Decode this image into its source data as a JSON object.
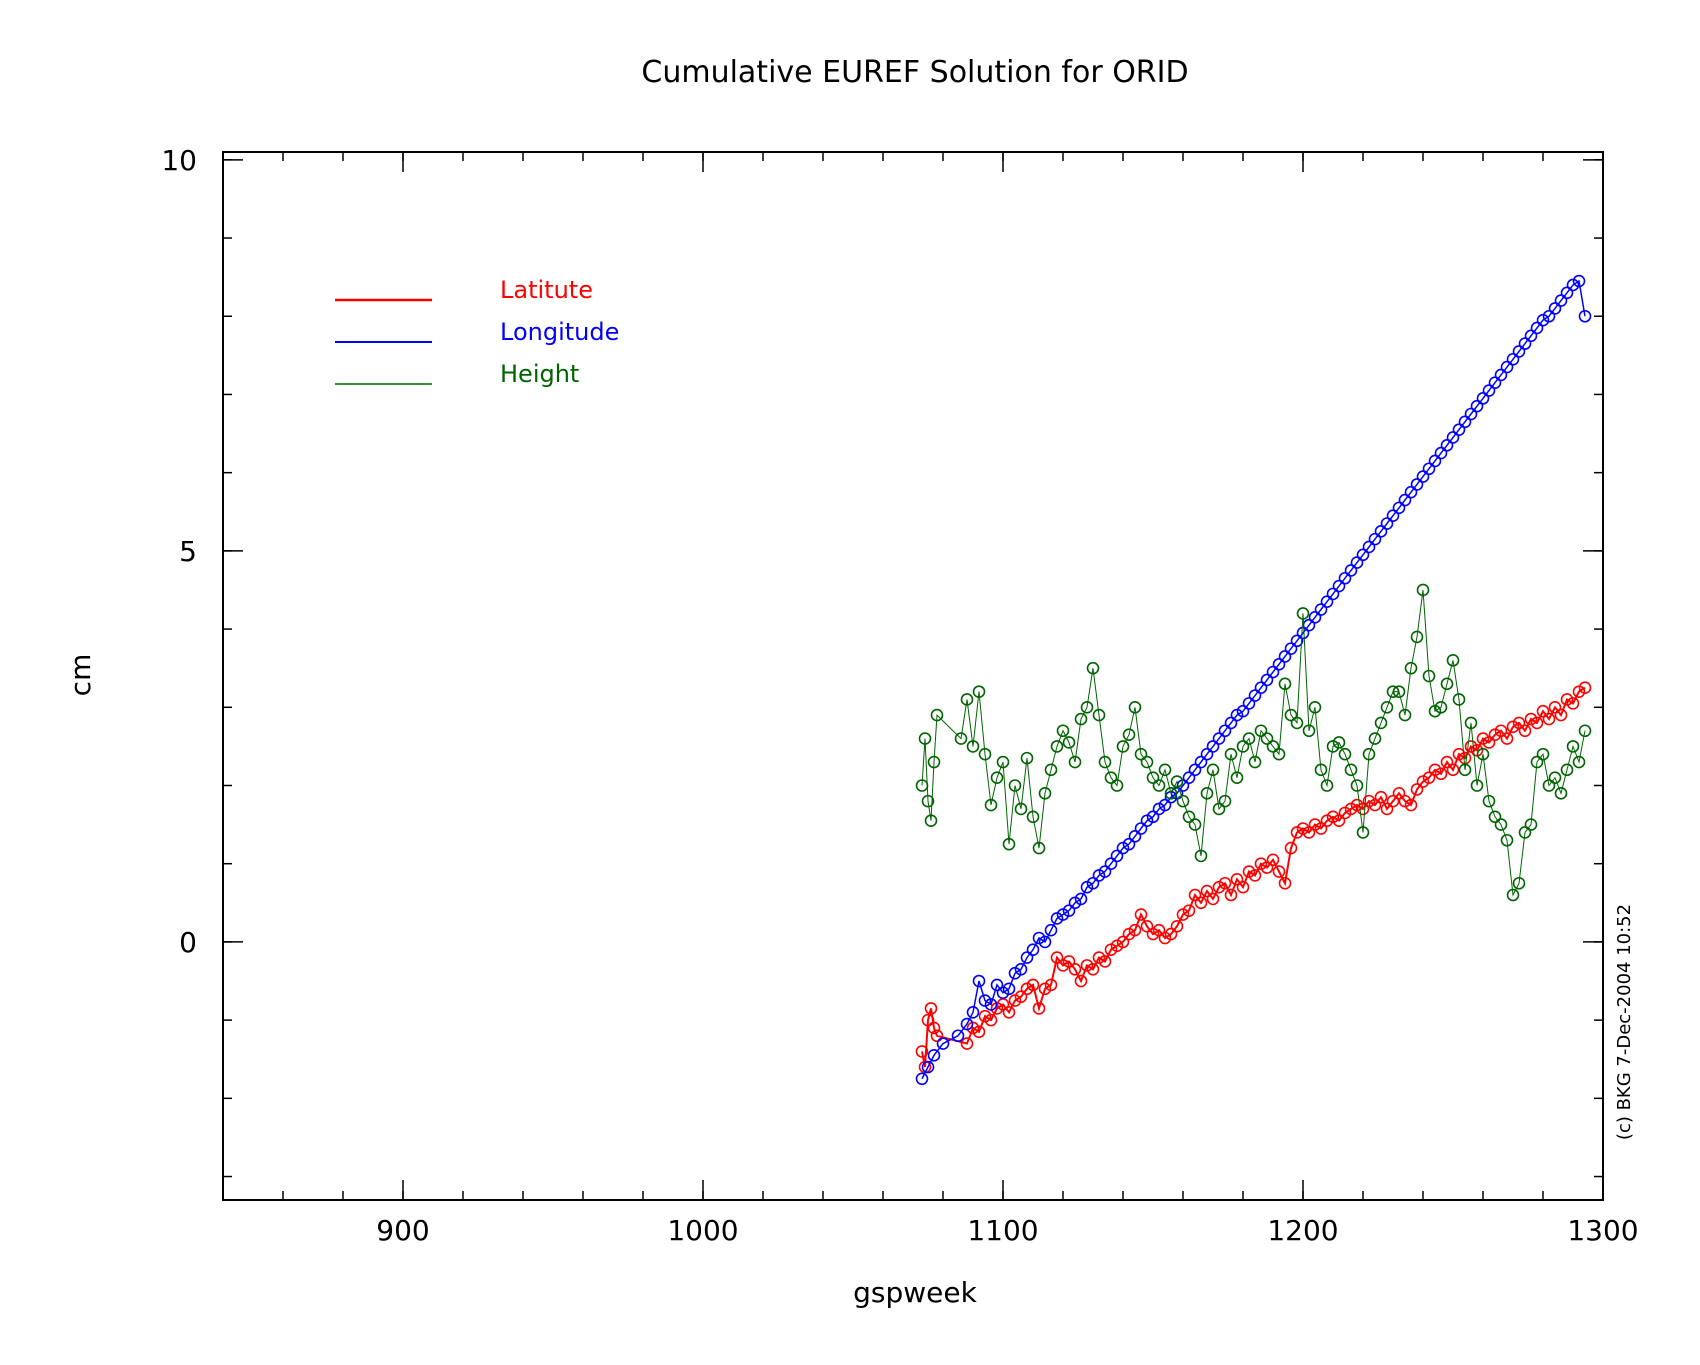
{
  "chart_data": {
    "type": "line",
    "title": "Cumulative EUREF Solution for ORID",
    "xlabel": "gspweek",
    "ylabel": "cm",
    "xlim": [
      840,
      1300
    ],
    "ylim": [
      -3.3,
      10.1
    ],
    "x_ticks": [
      900,
      1000,
      1100,
      1200,
      1300
    ],
    "x_tick_labels": [
      "900",
      "1000",
      "1100",
      "1200",
      "1300"
    ],
    "y_ticks": [
      0,
      5,
      10
    ],
    "y_tick_labels": [
      "0",
      "5",
      "10"
    ],
    "x_minor_step": 20,
    "y_minor_step": 1,
    "grid": false,
    "legend_position": "top-left",
    "copyright": "(c) BKG 7-Dec-2004 10:52",
    "series": [
      {
        "name": "Latitute",
        "color": "#ff0000",
        "line_width": 2,
        "x": [
          1073,
          1074,
          1075,
          1076,
          1077,
          1078,
          1088,
          1090,
          1092,
          1094,
          1096,
          1098,
          1100,
          1102,
          1104,
          1106,
          1108,
          1110,
          1112,
          1114,
          1116,
          1118,
          1120,
          1122,
          1124,
          1126,
          1128,
          1130,
          1132,
          1134,
          1136,
          1138,
          1140,
          1142,
          1144,
          1146,
          1148,
          1150,
          1152,
          1154,
          1156,
          1158,
          1160,
          1162,
          1164,
          1166,
          1168,
          1170,
          1172,
          1174,
          1176,
          1178,
          1180,
          1182,
          1184,
          1186,
          1188,
          1190,
          1192,
          1194,
          1196,
          1198,
          1200,
          1202,
          1204,
          1206,
          1208,
          1210,
          1212,
          1214,
          1216,
          1218,
          1220,
          1222,
          1224,
          1226,
          1228,
          1230,
          1232,
          1234,
          1236,
          1238,
          1240,
          1242,
          1244,
          1246,
          1248,
          1250,
          1252,
          1254,
          1256,
          1258,
          1260,
          1262,
          1264,
          1266,
          1268,
          1270,
          1272,
          1274,
          1276,
          1278,
          1280,
          1282,
          1284,
          1286,
          1288,
          1290,
          1292,
          1294
        ],
        "y": [
          -1.4,
          -1.6,
          -1.0,
          -0.85,
          -1.1,
          -1.2,
          -1.3,
          -1.1,
          -1.15,
          -0.95,
          -1.0,
          -0.85,
          -0.8,
          -0.9,
          -0.75,
          -0.7,
          -0.6,
          -0.55,
          -0.85,
          -0.6,
          -0.55,
          -0.2,
          -0.3,
          -0.25,
          -0.35,
          -0.5,
          -0.3,
          -0.35,
          -0.2,
          -0.25,
          -0.1,
          -0.05,
          0.0,
          0.1,
          0.15,
          0.35,
          0.2,
          0.1,
          0.15,
          0.05,
          0.1,
          0.2,
          0.35,
          0.4,
          0.6,
          0.5,
          0.65,
          0.55,
          0.7,
          0.75,
          0.6,
          0.8,
          0.7,
          0.9,
          0.85,
          1.0,
          0.95,
          1.05,
          0.9,
          0.75,
          1.2,
          1.4,
          1.45,
          1.4,
          1.5,
          1.45,
          1.55,
          1.6,
          1.55,
          1.65,
          1.7,
          1.75,
          1.7,
          1.8,
          1.75,
          1.85,
          1.7,
          1.8,
          1.9,
          1.8,
          1.75,
          1.95,
          2.05,
          2.1,
          2.2,
          2.15,
          2.3,
          2.2,
          2.4,
          2.35,
          2.5,
          2.45,
          2.6,
          2.55,
          2.65,
          2.7,
          2.6,
          2.75,
          2.8,
          2.7,
          2.85,
          2.8,
          2.95,
          2.85,
          3.0,
          2.9,
          3.1,
          3.05,
          3.2,
          3.25
        ]
      },
      {
        "name": "Longitude",
        "color": "#0000ff",
        "line_width": 1.5,
        "x": [
          1073,
          1075,
          1077,
          1080,
          1085,
          1088,
          1090,
          1092,
          1094,
          1096,
          1098,
          1100,
          1102,
          1104,
          1106,
          1108,
          1110,
          1112,
          1114,
          1116,
          1118,
          1120,
          1122,
          1124,
          1126,
          1128,
          1130,
          1132,
          1134,
          1136,
          1138,
          1140,
          1142,
          1144,
          1146,
          1148,
          1150,
          1152,
          1154,
          1156,
          1158,
          1160,
          1162,
          1164,
          1166,
          1168,
          1170,
          1172,
          1174,
          1176,
          1178,
          1180,
          1182,
          1184,
          1186,
          1188,
          1190,
          1192,
          1194,
          1196,
          1198,
          1200,
          1202,
          1204,
          1206,
          1208,
          1210,
          1212,
          1214,
          1216,
          1218,
          1220,
          1222,
          1224,
          1226,
          1228,
          1230,
          1232,
          1234,
          1236,
          1238,
          1240,
          1242,
          1244,
          1246,
          1248,
          1250,
          1252,
          1254,
          1256,
          1258,
          1260,
          1262,
          1264,
          1266,
          1268,
          1270,
          1272,
          1274,
          1276,
          1278,
          1280,
          1282,
          1284,
          1286,
          1288,
          1290,
          1292,
          1294
        ],
        "y": [
          -1.75,
          -1.6,
          -1.45,
          -1.3,
          -1.2,
          -1.05,
          -0.9,
          -0.5,
          -0.75,
          -0.8,
          -0.55,
          -0.65,
          -0.6,
          -0.4,
          -0.35,
          -0.2,
          -0.1,
          0.05,
          0.0,
          0.15,
          0.3,
          0.35,
          0.4,
          0.5,
          0.55,
          0.7,
          0.75,
          0.85,
          0.9,
          1.0,
          1.1,
          1.2,
          1.25,
          1.35,
          1.45,
          1.55,
          1.6,
          1.7,
          1.75,
          1.85,
          1.9,
          2.0,
          2.1,
          2.2,
          2.3,
          2.4,
          2.5,
          2.6,
          2.7,
          2.8,
          2.9,
          2.95,
          3.05,
          3.15,
          3.25,
          3.35,
          3.45,
          3.55,
          3.65,
          3.75,
          3.85,
          3.95,
          4.05,
          4.15,
          4.25,
          4.35,
          4.45,
          4.55,
          4.65,
          4.75,
          4.85,
          4.95,
          5.05,
          5.15,
          5.25,
          5.35,
          5.45,
          5.55,
          5.65,
          5.75,
          5.85,
          5.95,
          6.05,
          6.15,
          6.25,
          6.35,
          6.45,
          6.55,
          6.65,
          6.75,
          6.85,
          6.95,
          7.05,
          7.15,
          7.25,
          7.35,
          7.45,
          7.55,
          7.65,
          7.75,
          7.85,
          7.95,
          8.0,
          8.1,
          8.2,
          8.3,
          8.4,
          8.45,
          8.0
        ],
        "y_note_removed": true
      },
      {
        "name": "Height",
        "color": "#006400",
        "line_width": 1,
        "x": [
          1073,
          1074,
          1075,
          1076,
          1077,
          1078,
          1086,
          1088,
          1090,
          1092,
          1094,
          1096,
          1098,
          1100,
          1102,
          1104,
          1106,
          1108,
          1110,
          1112,
          1114,
          1116,
          1118,
          1120,
          1122,
          1124,
          1126,
          1128,
          1130,
          1132,
          1134,
          1136,
          1138,
          1140,
          1142,
          1144,
          1146,
          1148,
          1150,
          1152,
          1154,
          1156,
          1158,
          1160,
          1162,
          1164,
          1166,
          1168,
          1170,
          1172,
          1174,
          1176,
          1178,
          1180,
          1182,
          1184,
          1186,
          1188,
          1190,
          1192,
          1194,
          1196,
          1198,
          1200,
          1202,
          1204,
          1206,
          1208,
          1210,
          1212,
          1214,
          1216,
          1218,
          1220,
          1222,
          1224,
          1226,
          1228,
          1230,
          1232,
          1234,
          1236,
          1238,
          1240,
          1242,
          1244,
          1246,
          1248,
          1250,
          1252,
          1254,
          1256,
          1258,
          1260,
          1262,
          1264,
          1266,
          1268,
          1270,
          1272,
          1274,
          1276,
          1278,
          1280,
          1282,
          1284,
          1286,
          1288,
          1290,
          1292,
          1294
        ],
        "y": [
          2.0,
          2.6,
          1.8,
          1.55,
          2.3,
          2.9,
          2.6,
          3.1,
          2.5,
          3.2,
          2.4,
          1.75,
          2.1,
          2.3,
          1.25,
          2.0,
          1.7,
          2.35,
          1.6,
          1.2,
          1.9,
          2.2,
          2.5,
          2.7,
          2.55,
          2.3,
          2.85,
          3.0,
          3.5,
          2.9,
          2.3,
          2.1,
          2.0,
          2.5,
          2.65,
          3.0,
          2.4,
          2.3,
          2.1,
          2.0,
          2.2,
          1.9,
          2.05,
          1.8,
          1.6,
          1.5,
          1.1,
          1.9,
          2.2,
          1.7,
          1.8,
          2.4,
          2.1,
          2.5,
          2.6,
          2.3,
          2.7,
          2.6,
          2.5,
          2.4,
          3.3,
          2.9,
          2.8,
          4.2,
          2.7,
          3.0,
          2.2,
          2.0,
          2.5,
          2.55,
          2.4,
          2.2,
          2.0,
          1.4,
          2.4,
          2.6,
          2.8,
          3.0,
          3.2,
          3.2,
          2.9,
          3.5,
          3.9,
          4.5,
          3.4,
          2.95,
          3.0,
          3.3,
          3.6,
          3.1,
          2.2,
          2.8,
          2.0,
          2.4,
          1.8,
          1.6,
          1.5,
          1.3,
          0.6,
          0.75,
          1.4,
          1.5,
          2.3,
          2.4,
          2.0,
          2.1,
          1.9,
          2.2,
          2.5,
          2.3,
          2.7
        ],
        "y_note_removed": true
      }
    ]
  }
}
